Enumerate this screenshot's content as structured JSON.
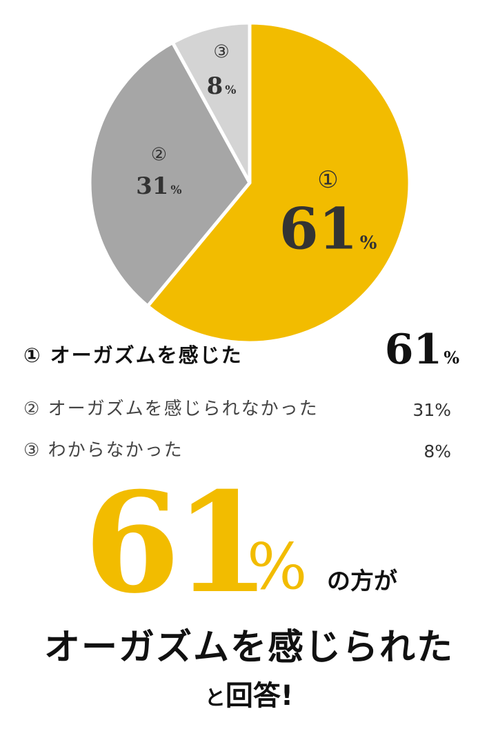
{
  "chart_data": {
    "type": "pie",
    "slices": [
      {
        "num": "①",
        "value": 61,
        "label": "オーガズムを感じた",
        "color": "#f2bc00"
      },
      {
        "num": "②",
        "value": 31,
        "label": "オーガズムを感じられなかった",
        "color": "#a6a6a6"
      },
      {
        "num": "③",
        "value": 8,
        "label": "わからなかった",
        "color": "#d4d4d4"
      }
    ],
    "unit": "%"
  },
  "legend": [
    {
      "label": "① オーガズムを感じた",
      "value": "61",
      "unit": "%"
    },
    {
      "label": "② オーガズムを感じられなかった",
      "value": "31%"
    },
    {
      "label": "③ わからなかった",
      "value": "8%"
    }
  ],
  "headline": {
    "number": "61",
    "percent": "%",
    "suffix": "の方が",
    "line2": "オーガズムを感じられた",
    "line3_small": "と",
    "line3_main": "回答!"
  }
}
